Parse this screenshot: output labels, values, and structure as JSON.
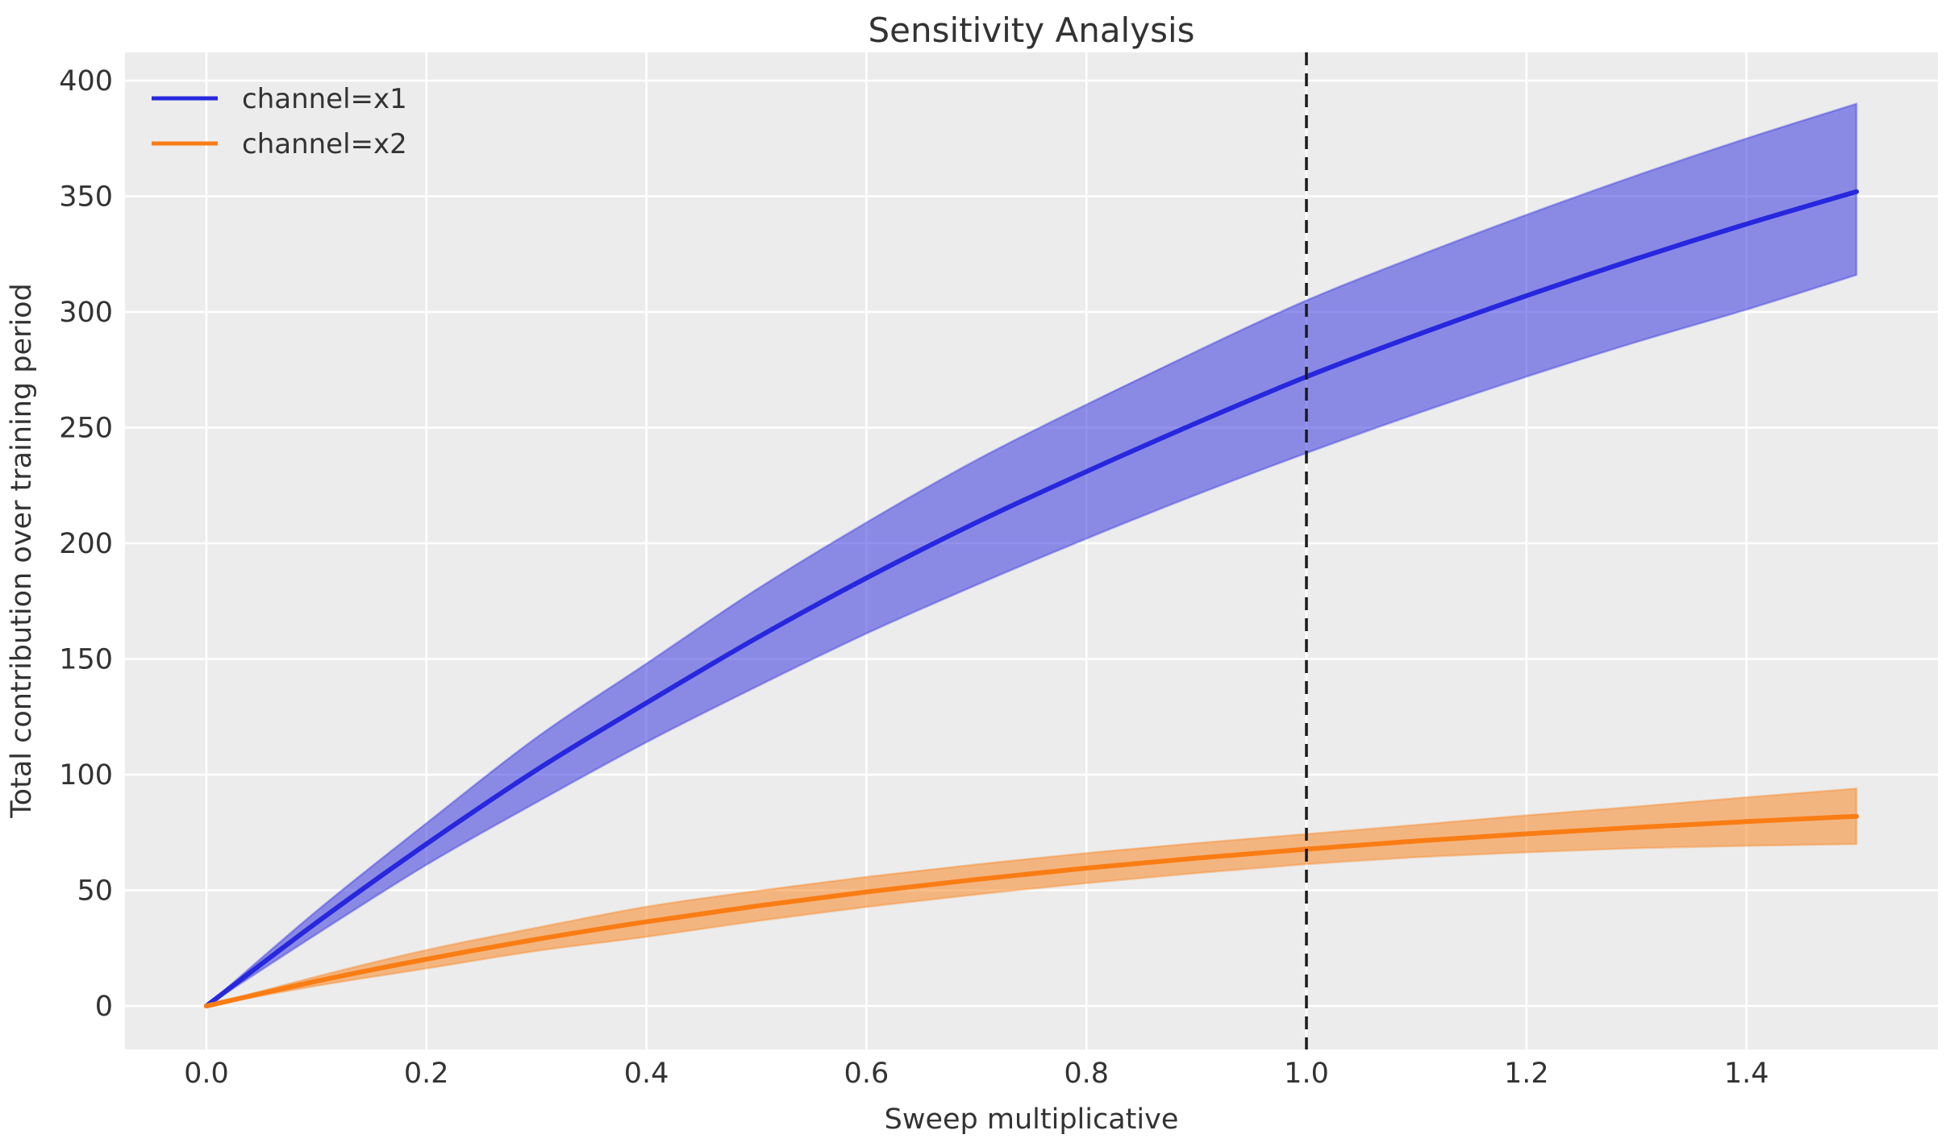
{
  "figure": {
    "background": "#ffffff"
  },
  "chart_data": {
    "type": "line",
    "title": "Sensitivity Analysis",
    "xlabel": "Sweep multiplicative",
    "ylabel": "Total contribution over training period",
    "xlim": [
      -0.074,
      1.574
    ],
    "ylim": [
      -18.8,
      412.2
    ],
    "grid": true,
    "plot_background": "#ececec",
    "grid_color": "#ffffff",
    "text_color": "#333333",
    "x_ticks": [
      0.0,
      0.2,
      0.4,
      0.6,
      0.8,
      1.0,
      1.2,
      1.4
    ],
    "x_tick_labels": [
      "0.0",
      "0.2",
      "0.4",
      "0.6",
      "0.8",
      "1.0",
      "1.2",
      "1.4"
    ],
    "y_ticks": [
      0,
      50,
      100,
      150,
      200,
      250,
      300,
      350,
      400
    ],
    "y_tick_labels": [
      "0",
      "50",
      "100",
      "150",
      "200",
      "250",
      "300",
      "350",
      "400"
    ],
    "reference_line": {
      "x": 1.0,
      "color": "#1a1a1a",
      "style": "dashed"
    },
    "legend": {
      "position": "upper-left",
      "entries": [
        "channel=x1",
        "channel=x2"
      ]
    },
    "x": [
      0,
      0.1,
      0.2,
      0.3,
      0.4,
      0.5,
      0.6,
      0.7,
      0.8,
      0.9,
      1.0,
      1.1,
      1.2,
      1.3,
      1.4,
      1.5
    ],
    "series": [
      {
        "name": "channel=x1",
        "color": "#2727de",
        "band_opacity": 0.5,
        "mean": [
          0,
          36,
          70,
          102,
          131,
          159,
          185,
          209,
          231,
          252,
          272,
          290,
          307,
          323,
          338,
          352
        ],
        "lower": [
          0,
          31,
          61,
          88,
          114,
          138,
          161,
          182,
          202,
          221,
          239,
          256,
          272,
          287,
          301,
          316
        ],
        "upper": [
          0,
          41,
          79,
          116,
          148,
          180,
          209,
          236,
          260,
          283,
          305,
          324,
          342,
          359,
          375,
          390
        ]
      },
      {
        "name": "channel=x2",
        "color": "#f97d14",
        "band_opacity": 0.5,
        "mean": [
          0,
          10.7,
          20.2,
          28.8,
          36.4,
          43.2,
          49.3,
          54.7,
          59.6,
          63.9,
          67.8,
          71.3,
          74.4,
          77.2,
          79.7,
          82
        ],
        "lower": [
          0,
          8.7,
          16.2,
          23.8,
          29.9,
          36.7,
          42.8,
          48.2,
          53.1,
          57.4,
          61.3,
          64.3,
          66.4,
          68.2,
          69.2,
          70
        ],
        "upper": [
          0,
          12.7,
          24.2,
          33.8,
          42.9,
          49.7,
          55.8,
          61.2,
          66.1,
          70.4,
          74.3,
          78.3,
          82.4,
          86.2,
          90.2,
          94
        ]
      }
    ]
  }
}
